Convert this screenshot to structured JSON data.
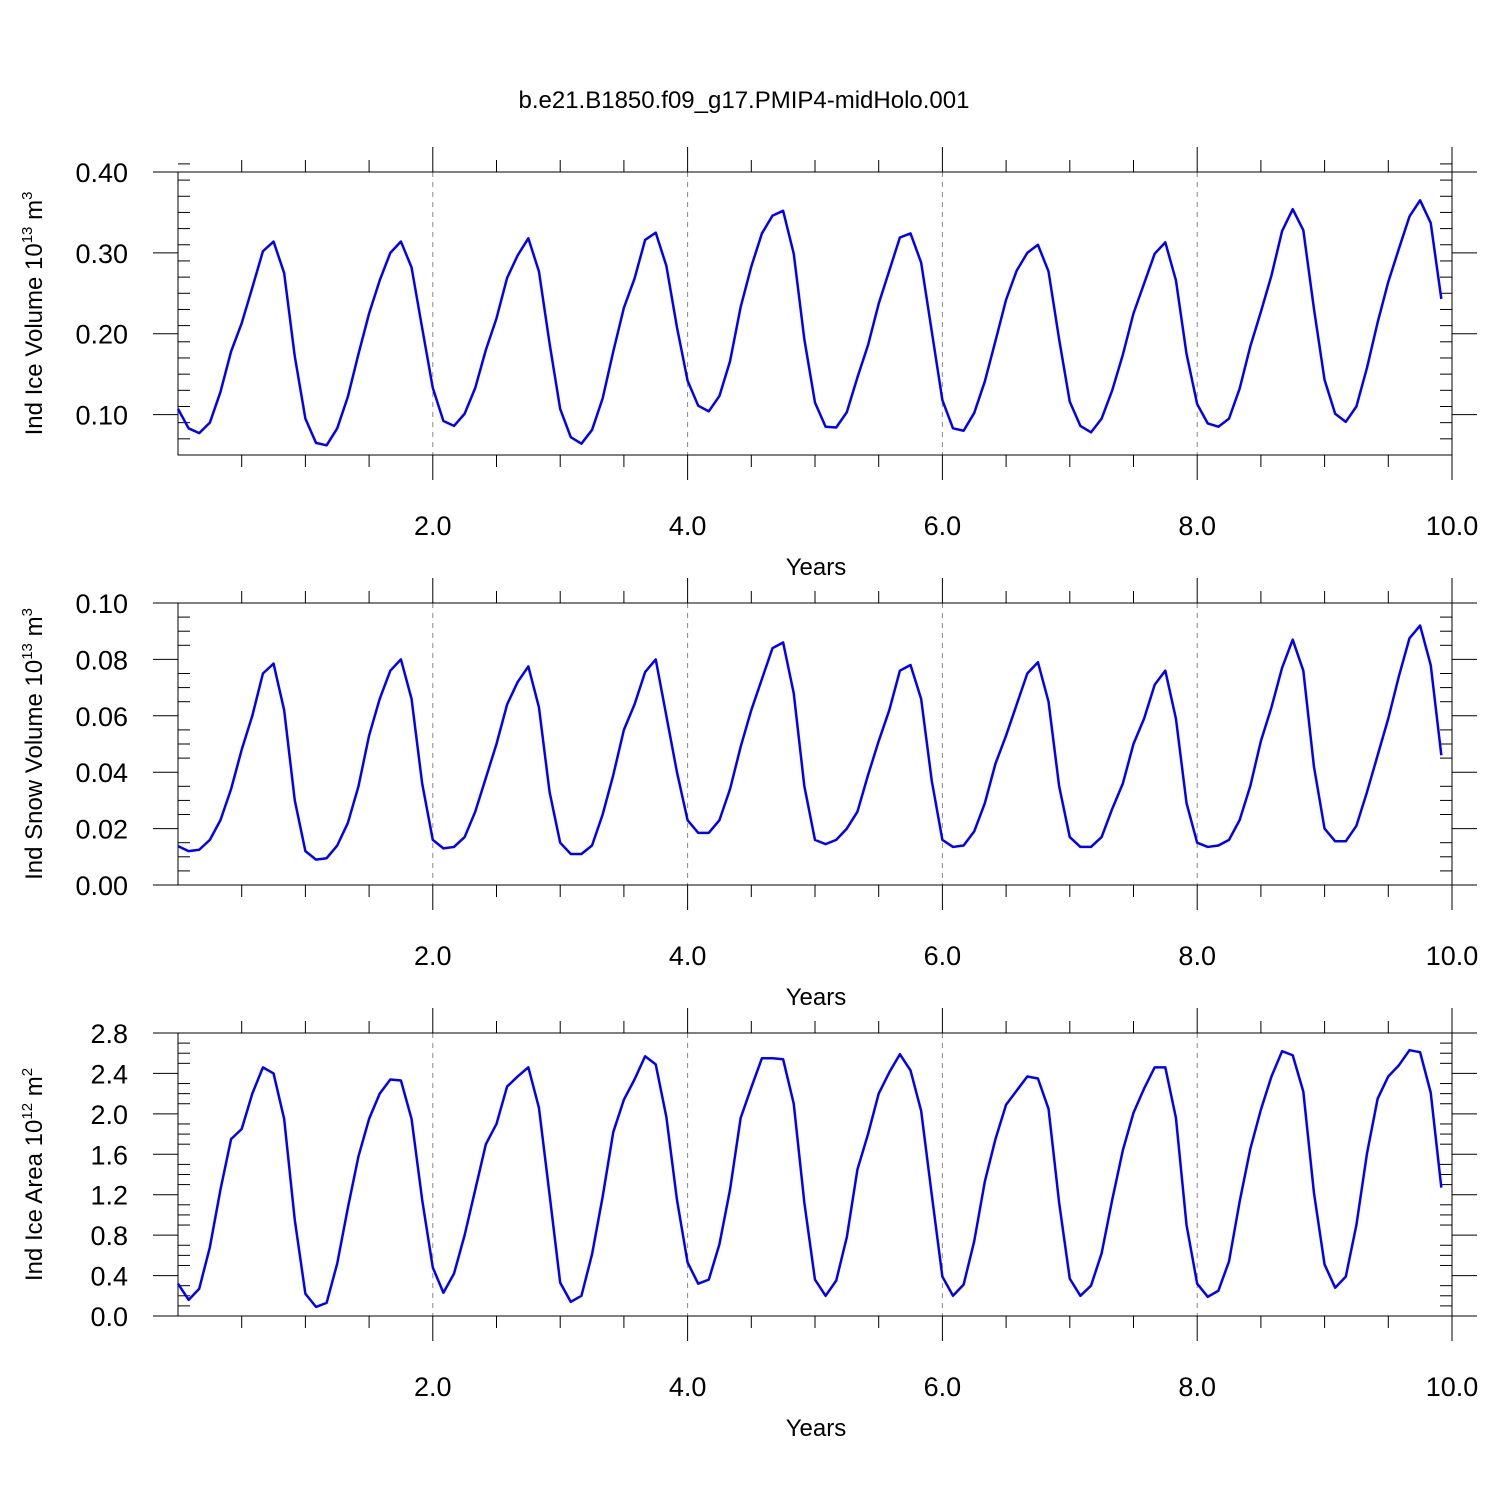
{
  "title": "b.e21.B1850.f09_g17.PMIP4-midHolo.001",
  "colors": {
    "line": "#0000ff",
    "axes": "#000000",
    "reference_lines": "#888888"
  },
  "chart_data": [
    {
      "type": "line",
      "ylabel_main": "Ind Ice Volume 10",
      "ylabel_exp": "13",
      "ylabel_unit": " m",
      "ylabel_unit_exp": "3",
      "xlabel": "Years",
      "xlim": [
        0.0,
        10.0
      ],
      "ylim": [
        0.05,
        0.4
      ],
      "xticks": [
        2.0,
        4.0,
        6.0,
        8.0,
        10.0
      ],
      "xtick_labels": [
        "2.0",
        "4.0",
        "6.0",
        "8.0",
        "10.0"
      ],
      "yticks": [
        0.1,
        0.2,
        0.3,
        0.4
      ],
      "ytick_labels": [
        "0.10",
        "0.20",
        "0.30",
        "0.40"
      ],
      "yminor": 0.02,
      "reference_x": [
        2.0,
        4.0,
        6.0,
        8.0
      ],
      "x_start": 0.0,
      "x_step": 0.08333,
      "values": [
        0.107,
        0.083,
        0.077,
        0.09,
        0.128,
        0.178,
        0.213,
        0.257,
        0.302,
        0.314,
        0.275,
        0.172,
        0.095,
        0.065,
        0.062,
        0.083,
        0.122,
        0.175,
        0.225,
        0.266,
        0.3,
        0.314,
        0.282,
        0.207,
        0.133,
        0.092,
        0.086,
        0.101,
        0.133,
        0.18,
        0.219,
        0.269,
        0.297,
        0.318,
        0.277,
        0.188,
        0.107,
        0.072,
        0.064,
        0.081,
        0.12,
        0.178,
        0.232,
        0.268,
        0.316,
        0.325,
        0.284,
        0.208,
        0.142,
        0.111,
        0.104,
        0.123,
        0.166,
        0.233,
        0.283,
        0.324,
        0.346,
        0.352,
        0.299,
        0.193,
        0.115,
        0.085,
        0.084,
        0.103,
        0.146,
        0.186,
        0.237,
        0.278,
        0.319,
        0.324,
        0.288,
        0.203,
        0.118,
        0.083,
        0.08,
        0.102,
        0.141,
        0.191,
        0.242,
        0.278,
        0.3,
        0.31,
        0.277,
        0.193,
        0.116,
        0.086,
        0.078,
        0.095,
        0.13,
        0.174,
        0.225,
        0.262,
        0.299,
        0.313,
        0.266,
        0.175,
        0.113,
        0.089,
        0.085,
        0.095,
        0.132,
        0.184,
        0.227,
        0.272,
        0.327,
        0.354,
        0.328,
        0.231,
        0.143,
        0.101,
        0.091,
        0.11,
        0.158,
        0.214,
        0.264,
        0.305,
        0.345,
        0.365,
        0.337,
        0.243
      ]
    },
    {
      "type": "line",
      "ylabel_main": "Ind Snow Volume 10",
      "ylabel_exp": "13",
      "ylabel_unit": " m",
      "ylabel_unit_exp": "3",
      "xlabel": "Years",
      "xlim": [
        0.0,
        10.0
      ],
      "ylim": [
        0.0,
        0.1
      ],
      "xticks": [
        2.0,
        4.0,
        6.0,
        8.0,
        10.0
      ],
      "xtick_labels": [
        "2.0",
        "4.0",
        "6.0",
        "8.0",
        "10.0"
      ],
      "yticks": [
        0.0,
        0.02,
        0.04,
        0.06,
        0.08,
        0.1
      ],
      "ytick_labels": [
        "0.00",
        "0.02",
        "0.04",
        "0.06",
        "0.08",
        "0.10"
      ],
      "yminor": 0.005,
      "reference_x": [
        2.0,
        4.0,
        6.0,
        8.0
      ],
      "x_start": 0.0,
      "x_step": 0.08333,
      "values": [
        0.0138,
        0.012,
        0.0125,
        0.016,
        0.023,
        0.034,
        0.048,
        0.06,
        0.075,
        0.0785,
        0.062,
        0.03,
        0.012,
        0.009,
        0.0095,
        0.014,
        0.022,
        0.035,
        0.053,
        0.066,
        0.076,
        0.08,
        0.066,
        0.036,
        0.016,
        0.013,
        0.0135,
        0.017,
        0.026,
        0.038,
        0.05,
        0.064,
        0.072,
        0.0775,
        0.063,
        0.033,
        0.015,
        0.011,
        0.011,
        0.014,
        0.025,
        0.039,
        0.055,
        0.064,
        0.0755,
        0.08,
        0.06,
        0.04,
        0.023,
        0.0185,
        0.0185,
        0.023,
        0.034,
        0.049,
        0.062,
        0.073,
        0.084,
        0.086,
        0.068,
        0.035,
        0.016,
        0.0145,
        0.016,
        0.02,
        0.026,
        0.039,
        0.051,
        0.062,
        0.076,
        0.078,
        0.066,
        0.037,
        0.016,
        0.0135,
        0.014,
        0.019,
        0.029,
        0.043,
        0.053,
        0.064,
        0.075,
        0.079,
        0.065,
        0.035,
        0.017,
        0.0135,
        0.0135,
        0.017,
        0.027,
        0.036,
        0.05,
        0.059,
        0.071,
        0.076,
        0.059,
        0.029,
        0.015,
        0.0135,
        0.014,
        0.016,
        0.023,
        0.035,
        0.051,
        0.063,
        0.077,
        0.087,
        0.076,
        0.042,
        0.02,
        0.0155,
        0.0155,
        0.021,
        0.033,
        0.046,
        0.059,
        0.074,
        0.0875,
        0.092,
        0.078,
        0.046
      ]
    },
    {
      "type": "line",
      "ylabel_main": "Ind Ice Area 10",
      "ylabel_exp": "12",
      "ylabel_unit": " m",
      "ylabel_unit_exp": "2",
      "xlabel": "Years",
      "xlim": [
        0.0,
        10.0
      ],
      "ylim": [
        0.0,
        2.8
      ],
      "xticks": [
        2.0,
        4.0,
        6.0,
        8.0,
        10.0
      ],
      "xtick_labels": [
        "2.0",
        "4.0",
        "6.0",
        "8.0",
        "10.0"
      ],
      "yticks": [
        0.0,
        0.4,
        0.8,
        1.2,
        1.6,
        2.0,
        2.4,
        2.8
      ],
      "ytick_labels": [
        "0.0",
        "0.4",
        "0.8",
        "1.2",
        "1.6",
        "2.0",
        "2.4",
        "2.8"
      ],
      "yminor": 0.1,
      "reference_x": [
        2.0,
        4.0,
        6.0,
        8.0
      ],
      "x_start": 0.0,
      "x_step": 0.08333,
      "values": [
        0.32,
        0.16,
        0.27,
        0.68,
        1.25,
        1.75,
        1.85,
        2.2,
        2.46,
        2.4,
        1.95,
        0.95,
        0.22,
        0.09,
        0.13,
        0.52,
        1.07,
        1.58,
        1.95,
        2.2,
        2.34,
        2.33,
        1.95,
        1.15,
        0.48,
        0.23,
        0.42,
        0.8,
        1.25,
        1.7,
        1.9,
        2.27,
        2.37,
        2.46,
        2.06,
        1.2,
        0.33,
        0.14,
        0.2,
        0.61,
        1.18,
        1.82,
        2.14,
        2.34,
        2.57,
        2.49,
        1.97,
        1.15,
        0.53,
        0.32,
        0.36,
        0.71,
        1.25,
        1.96,
        2.26,
        2.55,
        2.55,
        2.54,
        2.1,
        1.12,
        0.36,
        0.2,
        0.35,
        0.78,
        1.45,
        1.8,
        2.2,
        2.41,
        2.59,
        2.43,
        2.03,
        1.2,
        0.39,
        0.2,
        0.31,
        0.74,
        1.33,
        1.75,
        2.09,
        2.23,
        2.37,
        2.35,
        2.05,
        1.12,
        0.37,
        0.2,
        0.3,
        0.62,
        1.15,
        1.64,
        2.01,
        2.25,
        2.46,
        2.46,
        1.96,
        0.9,
        0.32,
        0.19,
        0.25,
        0.54,
        1.13,
        1.65,
        2.04,
        2.37,
        2.62,
        2.58,
        2.22,
        1.22,
        0.51,
        0.28,
        0.39,
        0.9,
        1.61,
        2.15,
        2.37,
        2.48,
        2.63,
        2.61,
        2.21,
        1.27
      ]
    }
  ]
}
